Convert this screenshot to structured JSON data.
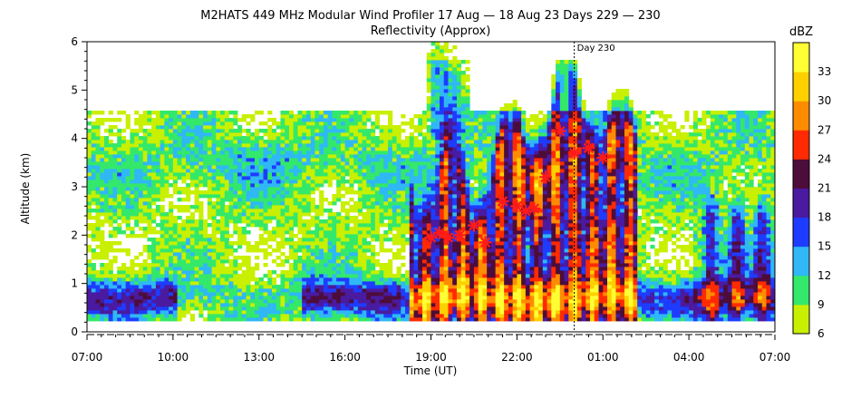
{
  "chart_data": {
    "type": "heatmap",
    "title": "M2HATS 449 MHz Modular Wind Profiler  17 Aug — 18 Aug 23 Days 229 — 230",
    "subtitle": "Reflectivity (Approx)",
    "xlabel": "Time (UT)",
    "ylabel": "Altitude (km)",
    "x_ticks": [
      "07:00",
      "10:00",
      "13:00",
      "16:00",
      "19:00",
      "22:00",
      "01:00",
      "04:00",
      "07:00"
    ],
    "x_tick_hours": [
      0,
      3,
      6,
      9,
      12,
      15,
      18,
      21,
      24
    ],
    "x_range_hours": [
      0,
      24
    ],
    "y_ticks": [
      "0",
      "1",
      "2",
      "3",
      "4",
      "5",
      "6"
    ],
    "ylim": [
      0,
      6
    ],
    "day_marker": {
      "label": "Day 230",
      "hour": 17
    },
    "colorbar": {
      "label": "dBZ",
      "ticks": [
        "6",
        "9",
        "12",
        "15",
        "18",
        "21",
        "24",
        "27",
        "30",
        "33"
      ],
      "levels": [
        6,
        9,
        12,
        15,
        18,
        21,
        24,
        27,
        30,
        33,
        36
      ],
      "colors": [
        "#c8f000",
        "#33e86a",
        "#2fb8f5",
        "#1e3cff",
        "#4a1aa0",
        "#4d0d3a",
        "#ff2a00",
        "#ff8c00",
        "#ffd000",
        "#ffff33"
      ]
    },
    "markers": [
      {
        "hour": 12.0,
        "alt": 1.95
      },
      {
        "hour": 12.3,
        "alt": 2.05
      },
      {
        "hour": 12.6,
        "alt": 1.95
      },
      {
        "hour": 13.0,
        "alt": 2.0
      },
      {
        "hour": 13.5,
        "alt": 2.2
      },
      {
        "hour": 13.9,
        "alt": 1.85
      },
      {
        "hour": 14.5,
        "alt": 2.7
      },
      {
        "hour": 15.0,
        "alt": 2.6
      },
      {
        "hour": 15.3,
        "alt": 2.5
      },
      {
        "hour": 15.6,
        "alt": 2.55
      },
      {
        "hour": 16.0,
        "alt": 3.2
      },
      {
        "hour": 16.5,
        "alt": 4.15
      },
      {
        "hour": 17.0,
        "alt": 3.7
      },
      {
        "hour": 17.5,
        "alt": 3.8
      },
      {
        "hour": 18.0,
        "alt": 3.6
      }
    ]
  }
}
